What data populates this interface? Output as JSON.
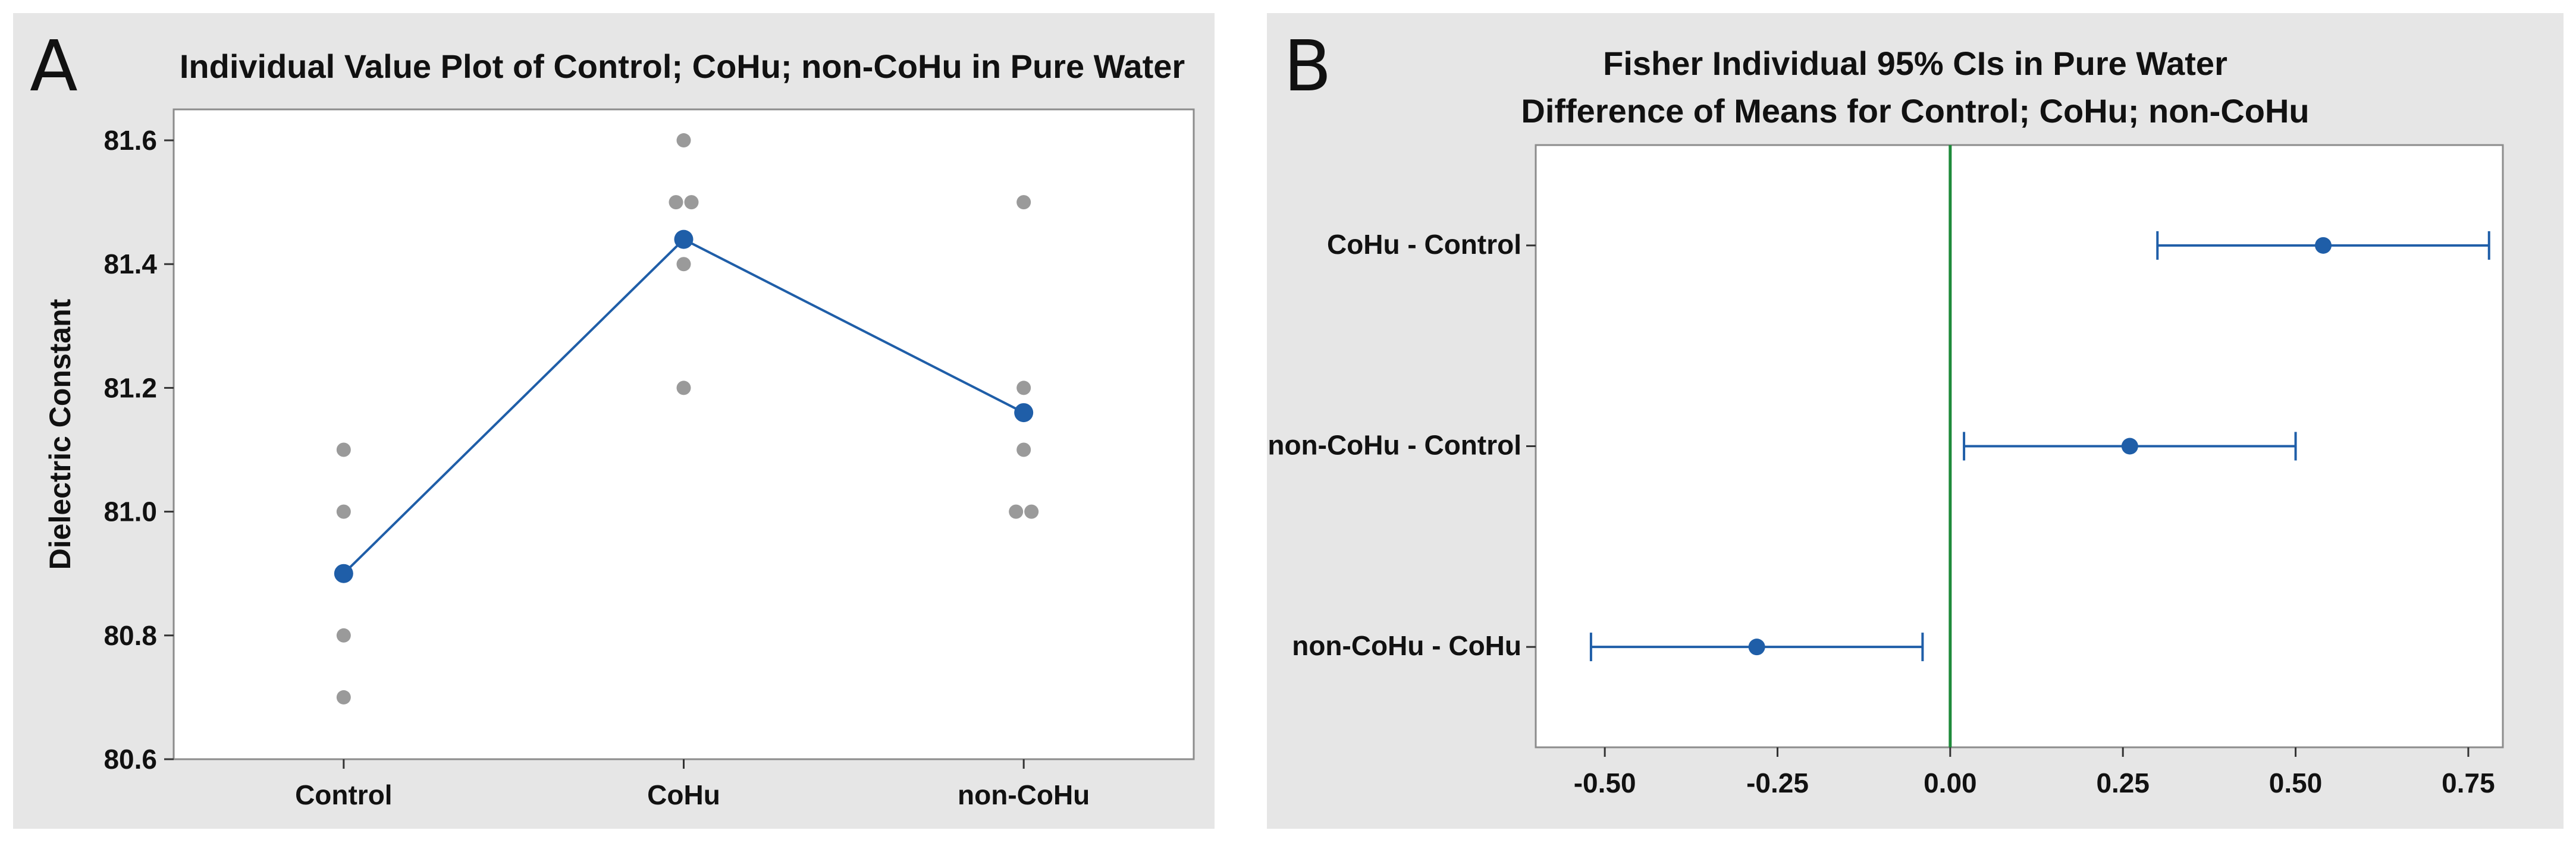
{
  "colors": {
    "panel_bg": "#e6e6e6",
    "plot_bg": "#ffffff",
    "mean_color": "#1f5ea8",
    "point_color": "#9a9a9a",
    "zero_line_color": "#1e8a3a"
  },
  "chart_data": [
    {
      "panel_label": "A",
      "type": "scatter",
      "title": "Individual Value Plot of Control; CoHu; non-CoHu in Pure Water",
      "xlabel": "",
      "ylabel": "Dielectric Constant",
      "categories": [
        "Control",
        "CoHu",
        "non-CoHu"
      ],
      "ylim": [
        80.6,
        81.65
      ],
      "yticks": [
        80.6,
        80.8,
        81.0,
        81.2,
        81.4,
        81.6
      ],
      "ytick_labels": [
        "80.6",
        "80.8",
        "81.0",
        "81.2",
        "81.4",
        "81.6"
      ],
      "individual_values": [
        [
          81.1,
          81.0,
          80.8,
          80.7
        ],
        [
          81.6,
          81.5,
          81.5,
          81.4,
          81.2
        ],
        [
          81.5,
          81.2,
          81.1,
          81.0,
          81.0
        ]
      ],
      "means": [
        80.9,
        81.44,
        81.16
      ],
      "grid": false
    },
    {
      "panel_label": "B",
      "type": "interval",
      "title": "Fisher Individual 95% CIs in Pure Water",
      "subtitle": "Difference of Means for Control; CoHu; non-CoHu",
      "categories": [
        "CoHu - Control",
        "non-CoHu - Control",
        "non-CoHu - CoHu"
      ],
      "estimates": [
        0.54,
        0.26,
        -0.28
      ],
      "lower": [
        0.3,
        0.02,
        -0.52
      ],
      "upper": [
        0.78,
        0.5,
        -0.04
      ],
      "xlim": [
        -0.6,
        0.8
      ],
      "xticks": [
        -0.5,
        -0.25,
        0.0,
        0.25,
        0.5,
        0.75
      ],
      "xtick_labels": [
        "-0.50",
        "-0.25",
        "0.00",
        "0.25",
        "0.50",
        "0.75"
      ],
      "reference_line": 0,
      "grid": false
    }
  ]
}
